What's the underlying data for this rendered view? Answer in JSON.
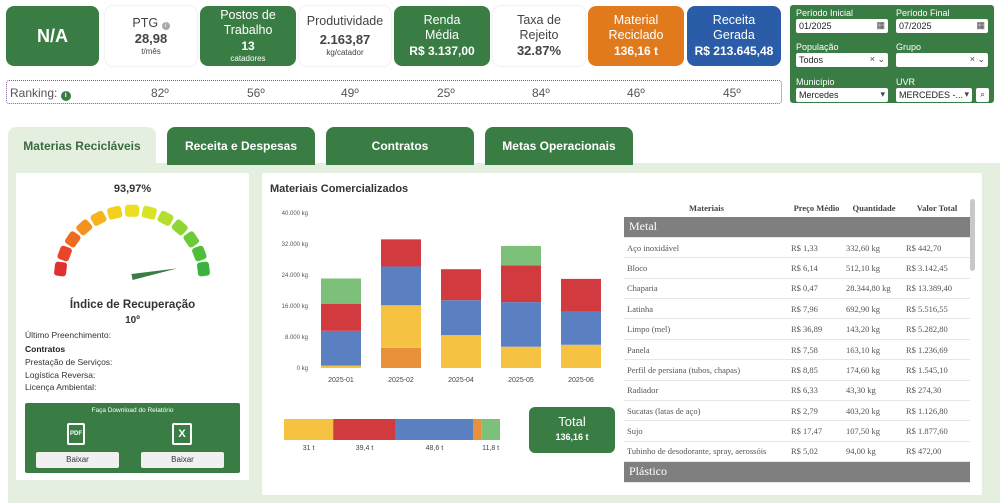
{
  "kpis": {
    "na": "N/A",
    "ptg_label": "PTG",
    "ptg_value": "28,98",
    "ptg_unit": "t/mês",
    "postos_label_1": "Postos de",
    "postos_label_2": "Trabalho",
    "postos_value": "13",
    "postos_unit": "catadores",
    "prod_label": "Produtividade",
    "prod_value": "2.163,87",
    "prod_unit": "kg/catador",
    "renda_label_1": "Renda",
    "renda_label_2": "Média",
    "renda_value": "R$ 3.137,00",
    "taxa_label_1": "Taxa de",
    "taxa_label_2": "Rejeito",
    "taxa_value": "32.87%",
    "material_label_1": "Material",
    "material_label_2": "Reciclado",
    "material_value": "136,16 t",
    "receita_label_1": "Receita",
    "receita_label_2": "Gerada",
    "receita_value": "R$ 213.645,48"
  },
  "ranking": {
    "label": "Ranking:",
    "values": [
      "82º",
      "56º",
      "49º",
      "25º",
      "84º",
      "46º",
      "45º"
    ]
  },
  "filters": {
    "periodo_inicial_label": "Período Inicial",
    "periodo_inicial_value": "01/2025",
    "periodo_final_label": "Período Final",
    "periodo_final_value": "07/2025",
    "populacao_label": "População",
    "populacao_value": "Todos",
    "grupo_label": "Grupo",
    "grupo_value": "",
    "municipio_label": "Município",
    "municipio_value": "Mercedes",
    "uvr_label": "UVR",
    "uvr_value": "MERCEDES -..."
  },
  "tabs": [
    "Materias Recicláveis",
    "Receita e Despesas",
    "Contratos",
    "Metas Operacionais"
  ],
  "gauge": {
    "percent_label": "93,97%",
    "value": 93.97,
    "title": "Índice de Recuperação",
    "rank": "10º"
  },
  "info": {
    "ultimo": "Último Preenchimento:",
    "contratos": "Contratos",
    "prestacao": "Prestação de Serviços:",
    "logistica": "Logística Reversa:",
    "licenca": "Licença Ambiental:"
  },
  "download": {
    "title": "Faça Download do Relatório",
    "pdf_button": "Baixar",
    "xls_button": "Baixar"
  },
  "colors": {
    "green": "#3a7d44",
    "orange": "#e07a1c",
    "blue": "#2b5ca8",
    "yellow": "#f5c242",
    "red": "#d13a3f",
    "steel": "#5b80c2",
    "lightgreen": "#7cc07a",
    "amber": "#e8913a"
  },
  "chart_data": {
    "type": "bar",
    "title": "Materiais Comercializados",
    "categories": [
      "2025-01",
      "2025-02",
      "2025-04",
      "2025-05",
      "2025-06"
    ],
    "yticks": [
      "40.000 kg",
      "32.000 kg",
      "24.000 kg",
      "16.000 kg",
      "8.000 kg",
      "0 kg"
    ],
    "ylim": [
      0,
      40000
    ],
    "series": [
      {
        "color": "#e8913a",
        "values": [
          0,
          5200,
          0,
          0,
          0
        ]
      },
      {
        "color": "#f5c242",
        "values": [
          600,
          11000,
          8500,
          5500,
          6000
        ]
      },
      {
        "color": "#5b80c2",
        "values": [
          9000,
          10000,
          9000,
          11500,
          8500
        ]
      },
      {
        "color": "#d13a3f",
        "values": [
          7000,
          7000,
          8000,
          9500,
          8500
        ]
      },
      {
        "color": "#7cc07a",
        "values": [
          6500,
          0,
          0,
          5000,
          0
        ]
      }
    ],
    "summary_bar": {
      "segments": [
        {
          "color": "#f5c242",
          "value": 31,
          "label": "31 t"
        },
        {
          "color": "#d13a3f",
          "value": 39.4,
          "label": "39,4 t"
        },
        {
          "color": "#5b80c2",
          "value": 48.6,
          "label": "48,6 t"
        },
        {
          "color": "#e8913a",
          "value": 5.2,
          "label": ""
        },
        {
          "color": "#7cc07a",
          "value": 11.8,
          "label": "11,8 t"
        }
      ]
    },
    "total_label": "Total",
    "total_value": "136,16 t"
  },
  "table": {
    "headers": [
      "Materiais",
      "Preço Médio",
      "Quantidade",
      "Valor Total"
    ],
    "group1": "Metal",
    "rows": [
      [
        "Aço inoxidável",
        "R$ 1,33",
        "332,60 kg",
        "R$ 442,70"
      ],
      [
        "Bloco",
        "R$ 6,14",
        "512,10 kg",
        "R$ 3.142,45"
      ],
      [
        "Chaparia",
        "R$ 0,47",
        "28.344,80 kg",
        "R$ 13.389,40"
      ],
      [
        "Latinha",
        "R$ 7,96",
        "692,90 kg",
        "R$ 5.516,55"
      ],
      [
        "Limpo (mel)",
        "R$ 36,89",
        "143,20 kg",
        "R$ 5.282,80"
      ],
      [
        "Panela",
        "R$ 7,58",
        "163,10 kg",
        "R$ 1.236,69"
      ],
      [
        "Perfil de persiana (tubos, chapas)",
        "R$ 8,85",
        "174,60 kg",
        "R$ 1.545,10"
      ],
      [
        "Radiador",
        "R$ 6,33",
        "43,30 kg",
        "R$ 274,30"
      ],
      [
        "Sucatas (latas de aço)",
        "R$ 2,79",
        "403,20 kg",
        "R$ 1.126,80"
      ],
      [
        "Sujo",
        "R$ 17,47",
        "107,50 kg",
        "R$ 1.877,60"
      ],
      [
        "Tubinho de desodorante, spray, aerossóis",
        "R$ 5,02",
        "94,00 kg",
        "R$ 472,00"
      ]
    ],
    "group2": "Plástico"
  }
}
